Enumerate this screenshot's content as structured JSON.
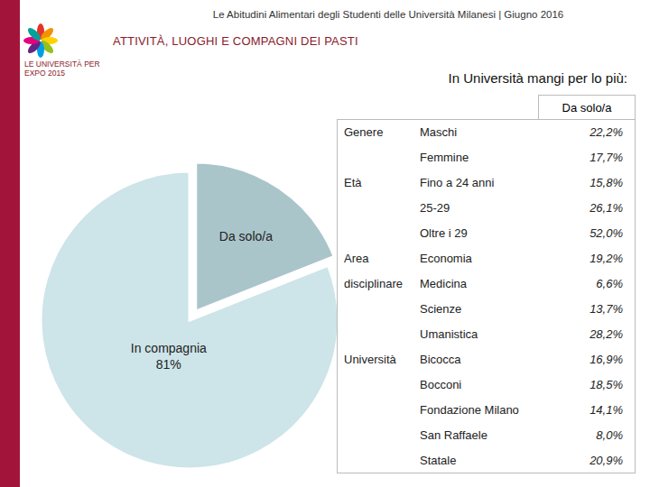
{
  "header": {
    "top_line": "Le Abitudini Alimentari degli Studenti delle Università Milanesi | Giugno 2016",
    "section_title": "ATTIVITÀ, LUOGHI E COMPAGNI DEI PASTI",
    "logo_text": "LE UNIVERSITÀ PER EXPO 2015"
  },
  "chart_data": {
    "type": "pie",
    "categories": [
      "Da solo/a",
      "In compagnia"
    ],
    "values": [
      19,
      81
    ],
    "value_labels": [
      null,
      "81%"
    ],
    "colors": [
      "#a9c5ca",
      "#cde4e9"
    ],
    "data_labels": true
  },
  "table": {
    "caption": "In Università mangi per lo più:",
    "column_header": "Da solo/a",
    "groups": [
      {
        "label": "Genere",
        "rows": [
          [
            "Maschi",
            "22,2%"
          ],
          [
            "Femmine",
            "17,7%"
          ]
        ]
      },
      {
        "label": "Età",
        "rows": [
          [
            "Fino a 24 anni",
            "15,8%"
          ],
          [
            "25-29",
            "26,1%"
          ],
          [
            "Oltre i 29",
            "52,0%"
          ]
        ]
      },
      {
        "label": "Area disciplinare",
        "rows": [
          [
            "Economia",
            "19,2%"
          ],
          [
            "Medicina",
            "6,6%"
          ],
          [
            "Scienze",
            "13,7%"
          ],
          [
            "Umanistica",
            "28,2%"
          ]
        ]
      },
      {
        "label": "Università",
        "rows": [
          [
            "Bicocca",
            "16,9%"
          ],
          [
            "Bocconi",
            "18,5%"
          ],
          [
            "Fondazione Milano",
            "14,1%"
          ],
          [
            "San Raffaele",
            "8,0%"
          ],
          [
            "Statale",
            "20,9%"
          ]
        ]
      }
    ]
  }
}
